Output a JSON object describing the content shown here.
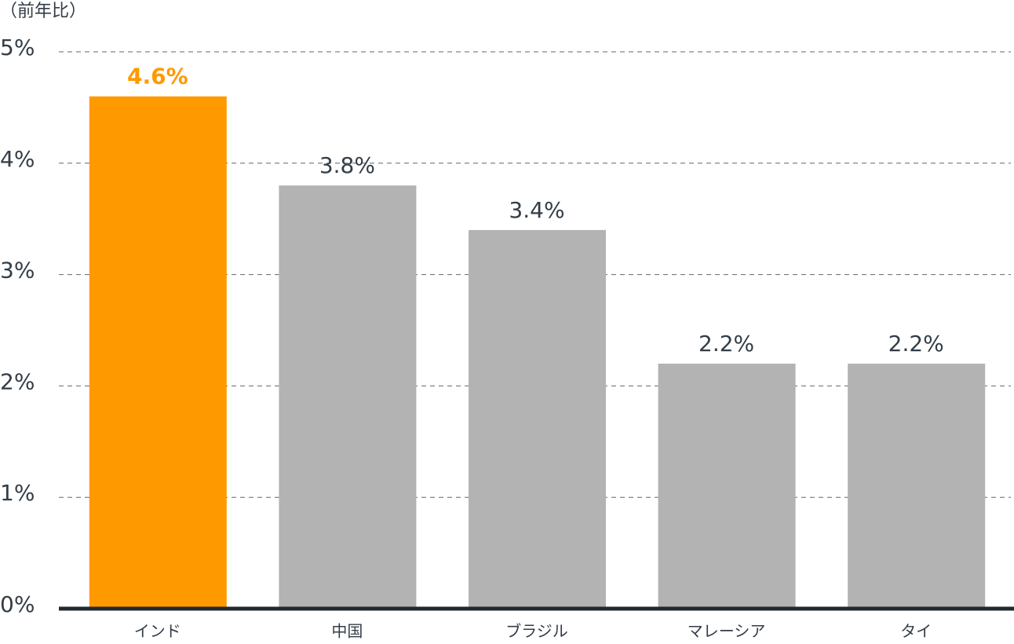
{
  "chart_data": {
    "type": "bar",
    "y_axis_label": "（前年比）",
    "categories": [
      "インド",
      "中国",
      "ブラジル",
      "マレーシア",
      "タイ"
    ],
    "values": [
      4.6,
      3.8,
      3.4,
      2.2,
      2.2
    ],
    "value_labels": [
      "4.6%",
      "3.8%",
      "3.4%",
      "2.2%",
      "2.2%"
    ],
    "colors": [
      "#ff9900",
      "#b3b3b3",
      "#b3b3b3",
      "#b3b3b3",
      "#b3b3b3"
    ],
    "value_label_colors": [
      "#ff9900",
      "#333d47",
      "#333d47",
      "#333d47",
      "#333d47"
    ],
    "ylim": [
      0,
      5
    ],
    "yticks": [
      {
        "value": 0,
        "label": "0%"
      },
      {
        "value": 1,
        "label": "1%"
      },
      {
        "value": 2,
        "label": "2%"
      },
      {
        "value": 3,
        "label": "3%"
      },
      {
        "value": 4,
        "label": "4%"
      },
      {
        "value": 5,
        "label": "5%"
      }
    ],
    "grid": true
  }
}
